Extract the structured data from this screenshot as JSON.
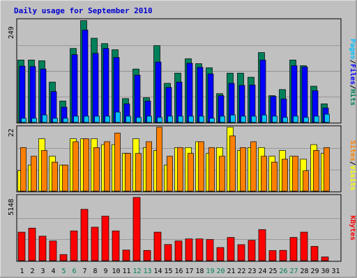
{
  "title": "Daily usage for September 2010",
  "colors": {
    "background": "#c0c0c0",
    "title": "#0000d0",
    "grid": "#808080",
    "hits": "#00805a",
    "files": "#0000ff",
    "pages": "#00c0ff",
    "visits": "#ffff00",
    "sites": "#ff8000",
    "kbytes": "#ff0000",
    "weekday": "#000000",
    "weekend": "#00805a"
  },
  "legend": {
    "pages": "Pages",
    "files": "Files",
    "hits": "Hits",
    "sites": "Sites",
    "visits": "Visits",
    "kbytes": "KBytes",
    "sep": "/"
  },
  "chart_data": [
    {
      "type": "bar",
      "panel": "hits-files-pages",
      "ymax_label": "249",
      "ylim": [
        0,
        249
      ],
      "categories": [
        "1",
        "2",
        "3",
        "4",
        "5",
        "6",
        "7",
        "8",
        "9",
        "10",
        "11",
        "12",
        "13",
        "14",
        "15",
        "16",
        "17",
        "18",
        "19",
        "20",
        "21",
        "22",
        "23",
        "24",
        "25",
        "26",
        "27",
        "28",
        "29",
        "30",
        "31"
      ],
      "weekend_days": [
        4,
        5,
        11,
        12,
        18,
        19,
        25,
        26
      ],
      "series": [
        {
          "name": "Hits",
          "values": [
            152,
            152,
            150,
            98,
            52,
            180,
            248,
            205,
            192,
            177,
            58,
            130,
            60,
            187,
            95,
            120,
            155,
            143,
            133,
            70,
            120,
            120,
            110,
            170,
            65,
            80,
            152,
            138,
            88,
            45,
            0
          ]
        },
        {
          "name": "Files",
          "values": [
            137,
            136,
            130,
            75,
            37,
            165,
            225,
            168,
            180,
            158,
            45,
            115,
            52,
            147,
            85,
            98,
            144,
            134,
            118,
            65,
            95,
            90,
            91,
            152,
            63,
            57,
            138,
            135,
            77,
            35,
            0
          ]
        },
        {
          "name": "Pages",
          "values": [
            10,
            10,
            18,
            10,
            10,
            15,
            15,
            15,
            15,
            25,
            15,
            12,
            15,
            12,
            15,
            15,
            15,
            15,
            10,
            15,
            18,
            15,
            15,
            18,
            15,
            12,
            15,
            12,
            15,
            20,
            0
          ]
        }
      ]
    },
    {
      "type": "bar",
      "panel": "visits-sites",
      "ymax_label": "22",
      "ylim": [
        0,
        22
      ],
      "categories": [
        "1",
        "2",
        "3",
        "4",
        "5",
        "6",
        "7",
        "8",
        "9",
        "10",
        "11",
        "12",
        "13",
        "14",
        "15",
        "16",
        "17",
        "18",
        "19",
        "20",
        "21",
        "22",
        "23",
        "24",
        "25",
        "26",
        "27",
        "28",
        "29",
        "30",
        "31"
      ],
      "series": [
        {
          "name": "Visits",
          "values": [
            7,
            9,
            18,
            12,
            9,
            18,
            18,
            18,
            16,
            16,
            13,
            18,
            15,
            14,
            9,
            15,
            15,
            17,
            13,
            15,
            22,
            14,
            15,
            15,
            12,
            14,
            12,
            11,
            16,
            13,
            0
          ]
        },
        {
          "name": "Sites",
          "values": [
            15,
            12,
            14,
            10,
            9,
            17,
            18,
            15,
            17,
            20,
            13,
            13,
            17,
            22,
            12,
            15,
            13,
            17,
            15,
            12,
            19,
            15,
            17,
            12,
            10,
            11,
            12,
            7,
            14,
            15,
            0
          ]
        }
      ]
    },
    {
      "type": "bar",
      "panel": "kbytes",
      "ymax_label": "5148",
      "ylim": [
        0,
        5148
      ],
      "categories": [
        "1",
        "2",
        "3",
        "4",
        "5",
        "6",
        "7",
        "8",
        "9",
        "10",
        "11",
        "12",
        "13",
        "14",
        "15",
        "16",
        "17",
        "18",
        "19",
        "20",
        "21",
        "22",
        "23",
        "24",
        "25",
        "26",
        "27",
        "28",
        "29",
        "30",
        "31"
      ],
      "series": [
        {
          "name": "KBytes",
          "values": [
            2320,
            2650,
            1990,
            1600,
            500,
            2420,
            4180,
            2720,
            3620,
            2420,
            860,
            5148,
            830,
            2320,
            1310,
            1600,
            1770,
            1770,
            1720,
            1070,
            1890,
            1300,
            1660,
            2530,
            820,
            840,
            1890,
            2320,
            1160,
            300,
            0
          ]
        }
      ]
    }
  ]
}
